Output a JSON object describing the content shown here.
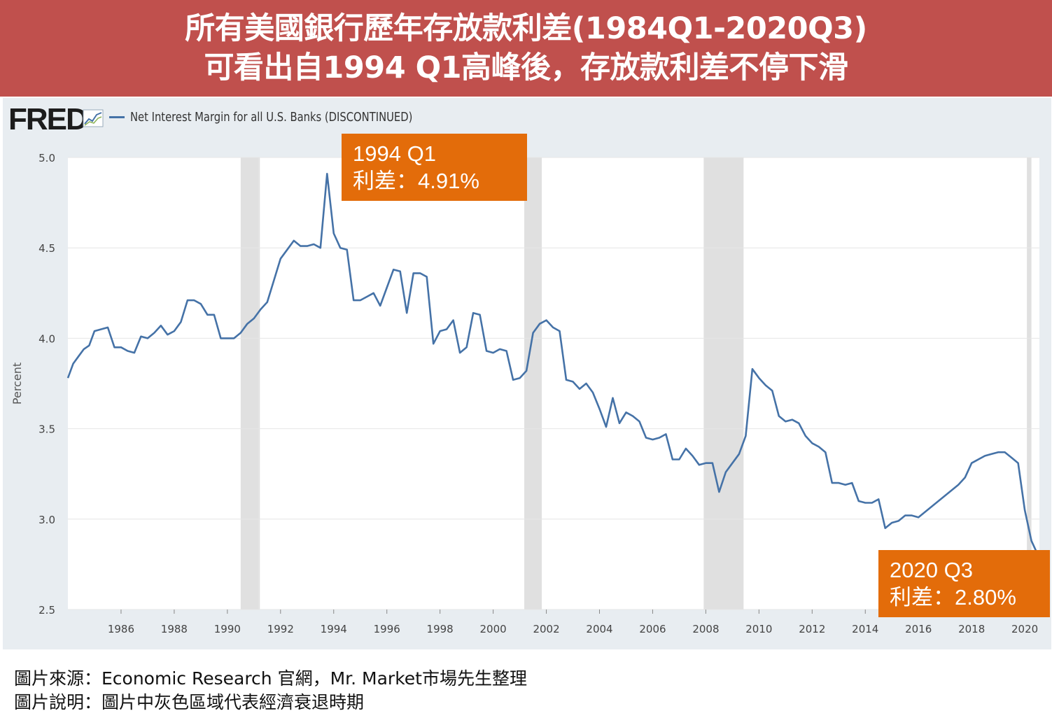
{
  "banner": {
    "title_line1": "所有美國銀行歷年存放款利差(1984Q1-2020Q3)",
    "title_line2": "可看出自1994 Q1高峰後，存放款利差不停下滑"
  },
  "logo": {
    "text": "FRED",
    "icon": "line-chart-icon"
  },
  "colors": {
    "banner": "#c0504d",
    "series": "#4572a7",
    "recession": "#e0e0e0",
    "annotation": "#e36c0a",
    "panel": "#e8edf1"
  },
  "annotations": {
    "peak": {
      "line1": "1994 Q1",
      "line2": "利差：4.91%"
    },
    "latest": {
      "line1": "2020 Q3",
      "line2": "利差：2.80%"
    }
  },
  "captions": {
    "source": "圖片來源：Economic Research 官網，Mr. Market市場先生整理",
    "note": "圖片說明：圖片中灰色區域代表經濟衰退時期"
  },
  "chart_data": {
    "type": "line",
    "title": "",
    "xlabel": "",
    "ylabel": "Percent",
    "ylim": [
      2.5,
      5.0
    ],
    "xlim": [
      1984.0,
      2020.55
    ],
    "yticks": [
      "5.0",
      "4.5",
      "4.0",
      "3.5",
      "3.0",
      "2.5"
    ],
    "xticks": [
      "1986",
      "1988",
      "1990",
      "1992",
      "1994",
      "1996",
      "1998",
      "2000",
      "2002",
      "2004",
      "2006",
      "2008",
      "2010",
      "2012",
      "2014",
      "2016",
      "2018",
      "2020"
    ],
    "grid": "horizontal",
    "legend": "top-left",
    "recessions": [
      [
        1990.5,
        1991.17
      ],
      [
        1991.17,
        1991.2
      ],
      [
        2001.17,
        2001.83
      ],
      [
        2007.92,
        2009.42
      ],
      [
        2020.08,
        2020.25
      ]
    ],
    "series": [
      {
        "name": "Net Interest Margin for all U.S. Banks (DISCONTINUED)",
        "x": [
          1984.0,
          1984.2,
          1984.4,
          1984.6,
          1984.8,
          1985.0,
          1985.25,
          1985.5,
          1985.75,
          1986.0,
          1986.25,
          1986.5,
          1986.75,
          1987.0,
          1987.25,
          1987.5,
          1987.75,
          1988.0,
          1988.25,
          1988.5,
          1988.75,
          1989.0,
          1989.25,
          1989.5,
          1989.75,
          1990.0,
          1990.25,
          1990.5,
          1990.75,
          1991.0,
          1991.25,
          1991.5,
          1991.75,
          1992.0,
          1992.25,
          1992.5,
          1992.75,
          1993.0,
          1993.25,
          1993.5,
          1993.75,
          1994.0,
          1994.25,
          1994.5,
          1994.75,
          1995.0,
          1995.25,
          1995.5,
          1995.75,
          1996.0,
          1996.25,
          1996.5,
          1996.75,
          1997.0,
          1997.25,
          1997.5,
          1997.75,
          1998.0,
          1998.25,
          1998.5,
          1998.75,
          1999.0,
          1999.25,
          1999.5,
          1999.75,
          2000.0,
          2000.25,
          2000.5,
          2000.75,
          2001.0,
          2001.25,
          2001.5,
          2001.75,
          2002.0,
          2002.25,
          2002.5,
          2002.75,
          2003.0,
          2003.25,
          2003.5,
          2003.75,
          2004.0,
          2004.25,
          2004.5,
          2004.75,
          2005.0,
          2005.25,
          2005.5,
          2005.75,
          2006.0,
          2006.25,
          2006.5,
          2006.75,
          2007.0,
          2007.25,
          2007.5,
          2007.75,
          2008.0,
          2008.25,
          2008.5,
          2008.75,
          2009.0,
          2009.25,
          2009.5,
          2009.75,
          2010.0,
          2010.25,
          2010.5,
          2010.75,
          2011.0,
          2011.25,
          2011.5,
          2011.75,
          2012.0,
          2012.25,
          2012.5,
          2012.75,
          2013.0,
          2013.25,
          2013.5,
          2013.75,
          2014.0,
          2014.25,
          2014.5,
          2014.75,
          2015.0,
          2015.25,
          2015.5,
          2015.75,
          2016.0,
          2016.25,
          2016.5,
          2016.75,
          2017.0,
          2017.25,
          2017.5,
          2017.75,
          2018.0,
          2018.25,
          2018.5,
          2018.75,
          2019.0,
          2019.25,
          2019.5,
          2019.75,
          2020.0,
          2020.25,
          2020.5
        ],
        "values": [
          3.78,
          3.86,
          3.9,
          3.94,
          3.96,
          4.04,
          4.05,
          4.06,
          3.95,
          3.95,
          3.93,
          3.92,
          4.01,
          4.0,
          4.03,
          4.07,
          4.02,
          4.04,
          4.09,
          4.21,
          4.21,
          4.19,
          4.13,
          4.13,
          4.0,
          4.0,
          4.0,
          4.03,
          4.08,
          4.11,
          4.16,
          4.2,
          4.32,
          4.44,
          4.49,
          4.54,
          4.51,
          4.51,
          4.52,
          4.5,
          4.91,
          4.58,
          4.5,
          4.49,
          4.21,
          4.21,
          4.23,
          4.25,
          4.18,
          4.28,
          4.38,
          4.37,
          4.14,
          4.36,
          4.36,
          4.34,
          3.97,
          4.04,
          4.05,
          4.1,
          3.92,
          3.95,
          4.14,
          4.13,
          3.93,
          3.92,
          3.94,
          3.93,
          3.77,
          3.78,
          3.82,
          4.03,
          4.08,
          4.1,
          4.06,
          4.04,
          3.77,
          3.76,
          3.72,
          3.75,
          3.7,
          3.61,
          3.51,
          3.67,
          3.53,
          3.59,
          3.57,
          3.54,
          3.45,
          3.44,
          3.45,
          3.47,
          3.33,
          3.33,
          3.39,
          3.35,
          3.3,
          3.31,
          3.31,
          3.15,
          3.26,
          3.31,
          3.36,
          3.46,
          3.83,
          3.78,
          3.74,
          3.71,
          3.57,
          3.54,
          3.55,
          3.53,
          3.46,
          3.42,
          3.4,
          3.37,
          3.2,
          3.2,
          3.19,
          3.2,
          3.1,
          3.09,
          3.09,
          3.11,
          2.95,
          2.98,
          2.99,
          3.02,
          3.02,
          3.01,
          3.04,
          3.07,
          3.1,
          3.13,
          3.16,
          3.19,
          3.23,
          3.31,
          3.33,
          3.35,
          3.36,
          3.37,
          3.37,
          3.34,
          3.31,
          3.05,
          2.88,
          2.8
        ]
      }
    ]
  }
}
